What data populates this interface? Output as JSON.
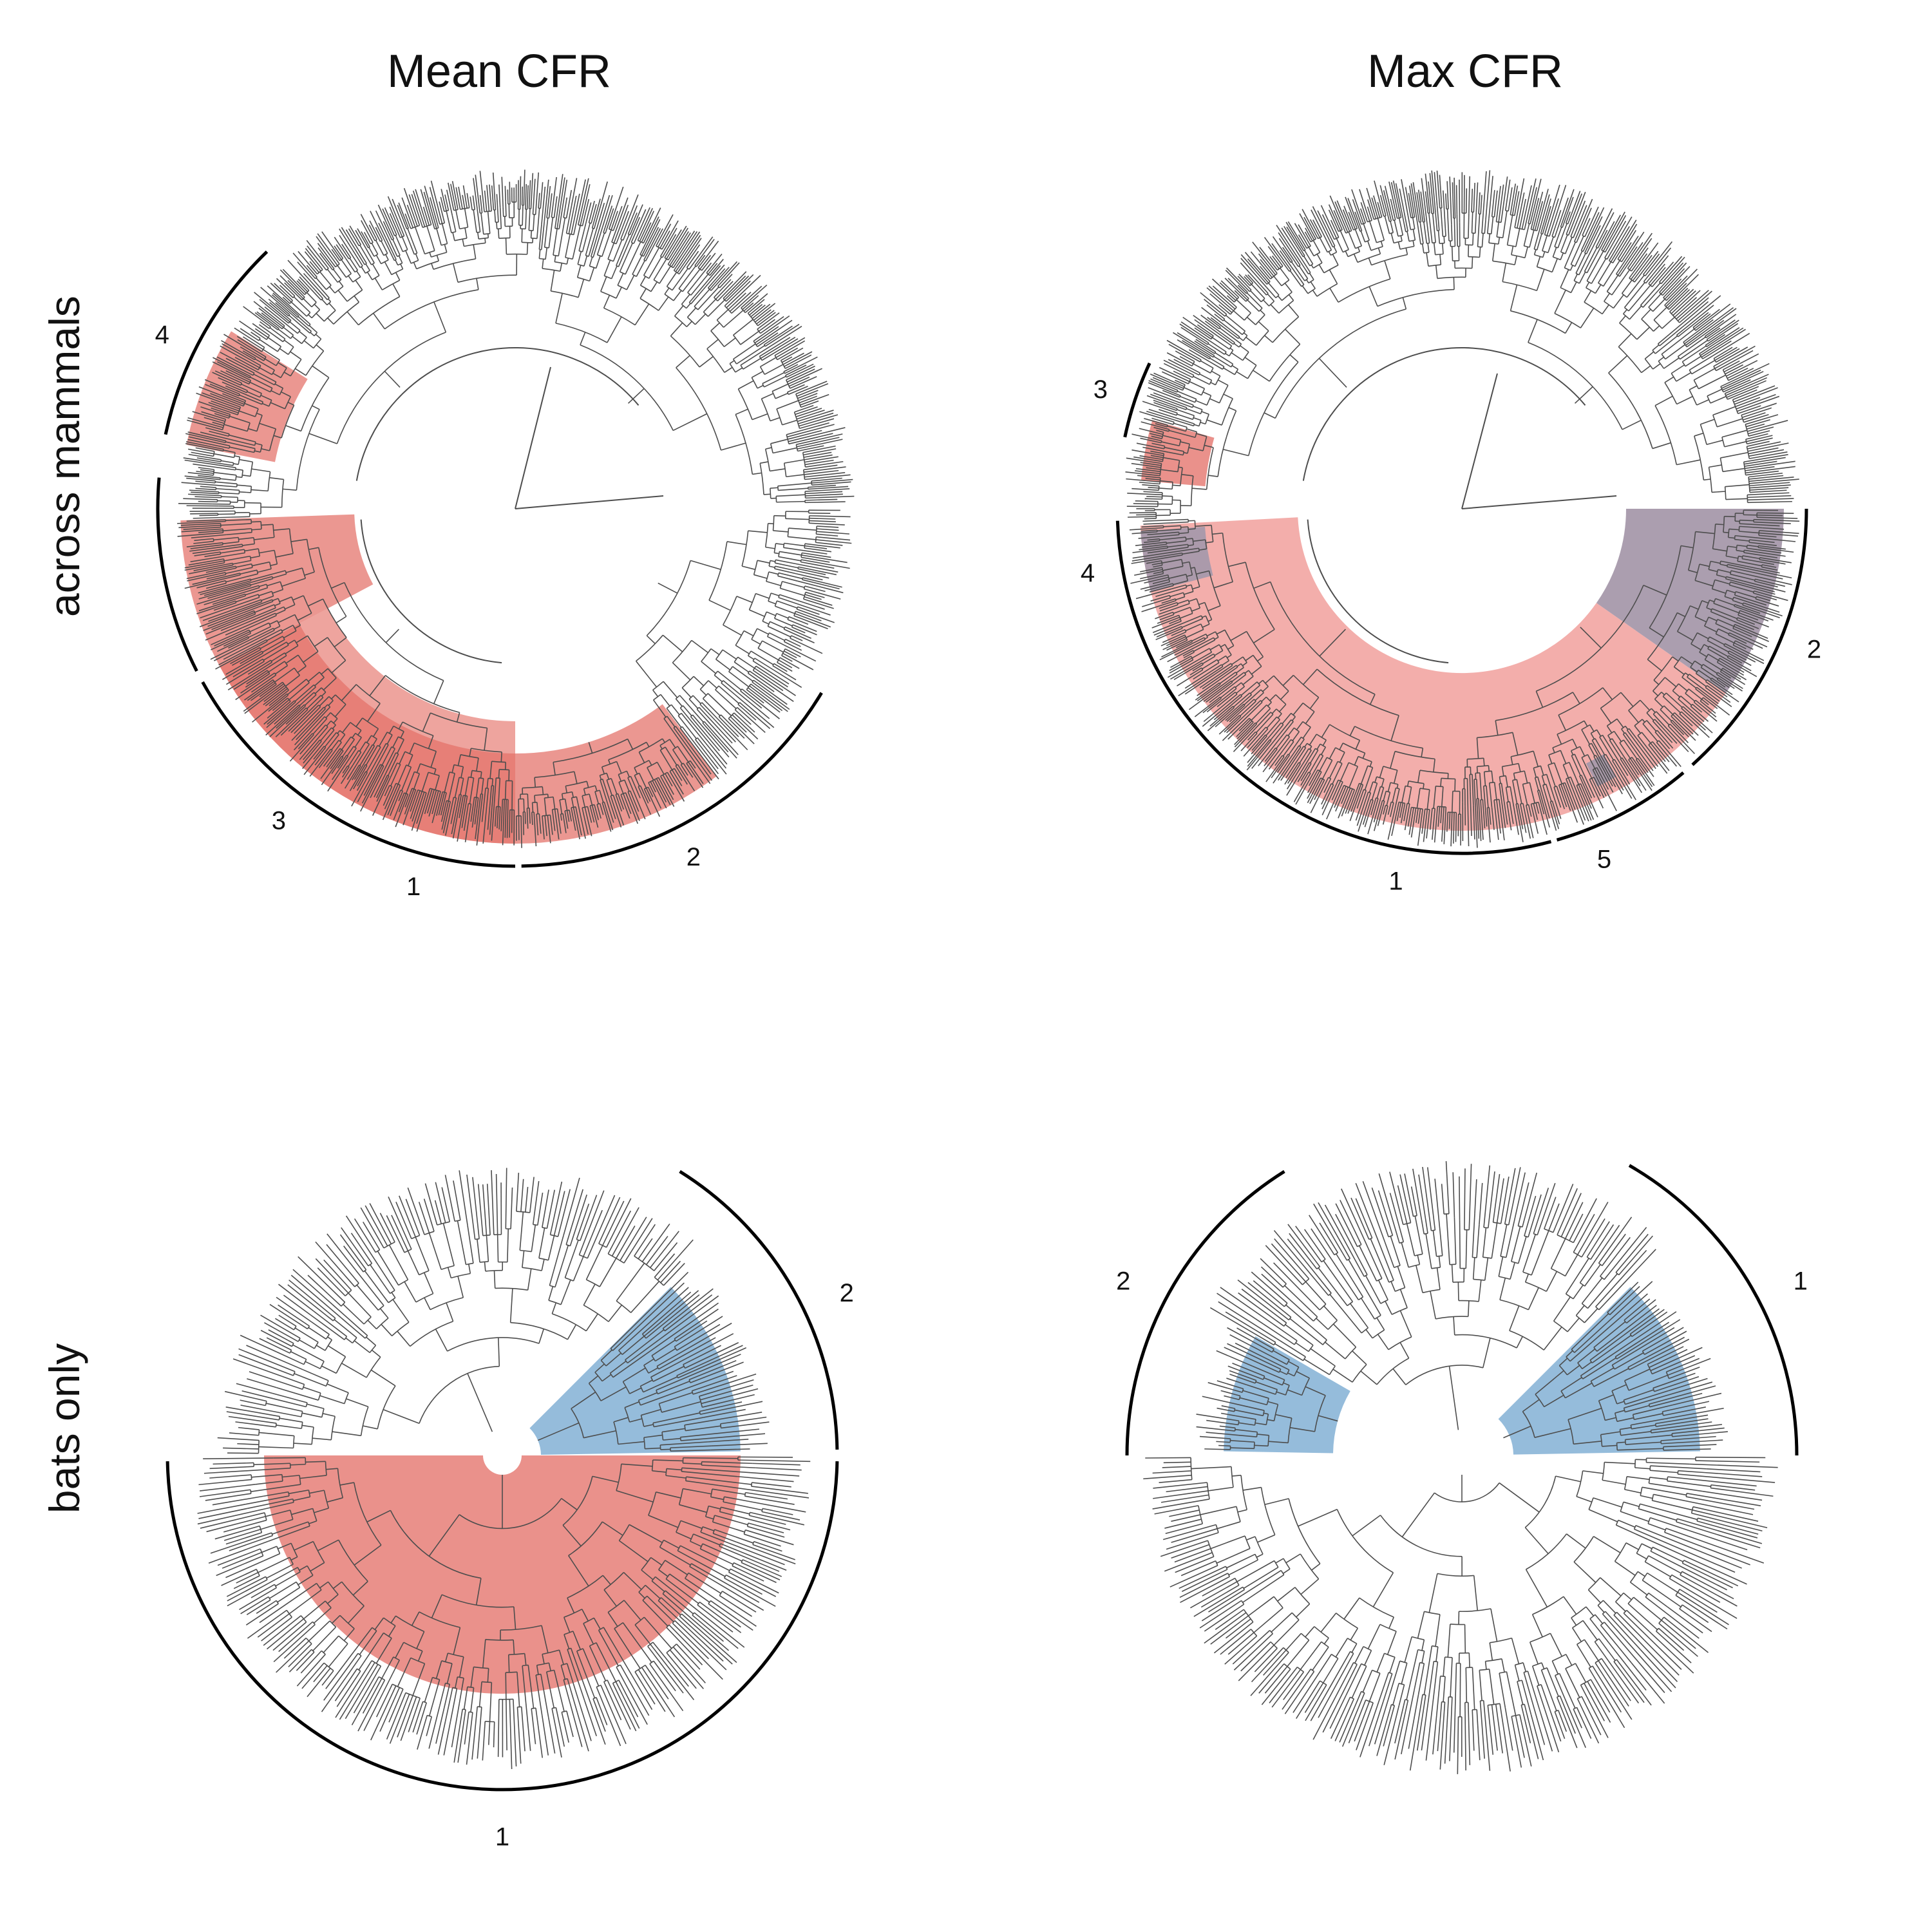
{
  "column_titles": [
    "Mean CFR",
    "Max CFR"
  ],
  "row_titles": [
    "across mammals",
    "bats only"
  ],
  "colors": {
    "red": "#e8857e",
    "red_light": "#f2aaa6",
    "red_dark": "#e05a50",
    "blue": "#8fb8d9",
    "purple": "#a799ab",
    "branch": "#4d4d4d",
    "bracket": "#000000"
  },
  "panels": [
    {
      "id": "mean-mammals",
      "column": "Mean CFR",
      "row": "across mammals",
      "tree": "mammals",
      "clades": [
        {
          "label": "1",
          "color": "red_dark"
        },
        {
          "label": "2",
          "color": "red"
        },
        {
          "label": "3",
          "color": "red"
        },
        {
          "label": "4",
          "color": "red"
        }
      ]
    },
    {
      "id": "max-mammals",
      "column": "Max CFR",
      "row": "across mammals",
      "tree": "mammals",
      "clades": [
        {
          "label": "1",
          "color": "red_light"
        },
        {
          "label": "2",
          "color": "purple"
        },
        {
          "label": "3",
          "color": "red"
        },
        {
          "label": "4",
          "color": "purple"
        },
        {
          "label": "5",
          "color": "purple"
        }
      ]
    },
    {
      "id": "mean-bats",
      "column": "Mean CFR",
      "row": "bats only",
      "tree": "bats",
      "clades": [
        {
          "label": "1",
          "color": "red"
        },
        {
          "label": "2",
          "color": "blue"
        }
      ]
    },
    {
      "id": "max-bats",
      "column": "Max CFR",
      "row": "bats only",
      "tree": "bats",
      "clades": [
        {
          "label": "1",
          "color": "blue"
        },
        {
          "label": "2",
          "color": "blue"
        }
      ]
    }
  ]
}
